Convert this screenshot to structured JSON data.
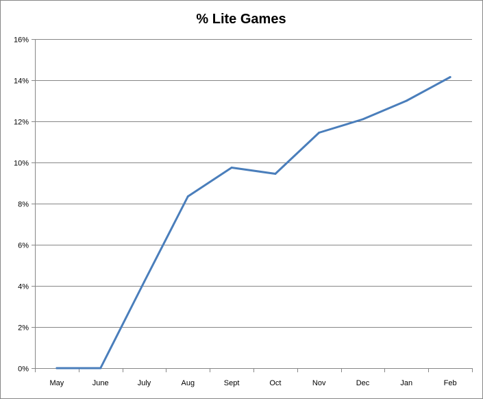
{
  "chart_data": {
    "type": "line",
    "title": "% Lite Games",
    "xlabel": "",
    "ylabel": "",
    "categories": [
      "May",
      "June",
      "July",
      "Aug",
      "Sept",
      "Oct",
      "Nov",
      "Dec",
      "Jan",
      "Feb"
    ],
    "series": [
      {
        "values": [
          0.0,
          0.0,
          4.2,
          8.35,
          9.75,
          9.45,
          11.45,
          12.1,
          13.0,
          14.15
        ],
        "color": "#4a7ebb"
      }
    ],
    "ylim": [
      0,
      16
    ],
    "yticks": [
      0,
      2,
      4,
      6,
      8,
      10,
      12,
      14,
      16
    ],
    "ytick_labels": [
      "0%",
      "2%",
      "4%",
      "6%",
      "8%",
      "10%",
      "12%",
      "14%",
      "16%"
    ],
    "grid": "horizontal",
    "legend": "none"
  }
}
